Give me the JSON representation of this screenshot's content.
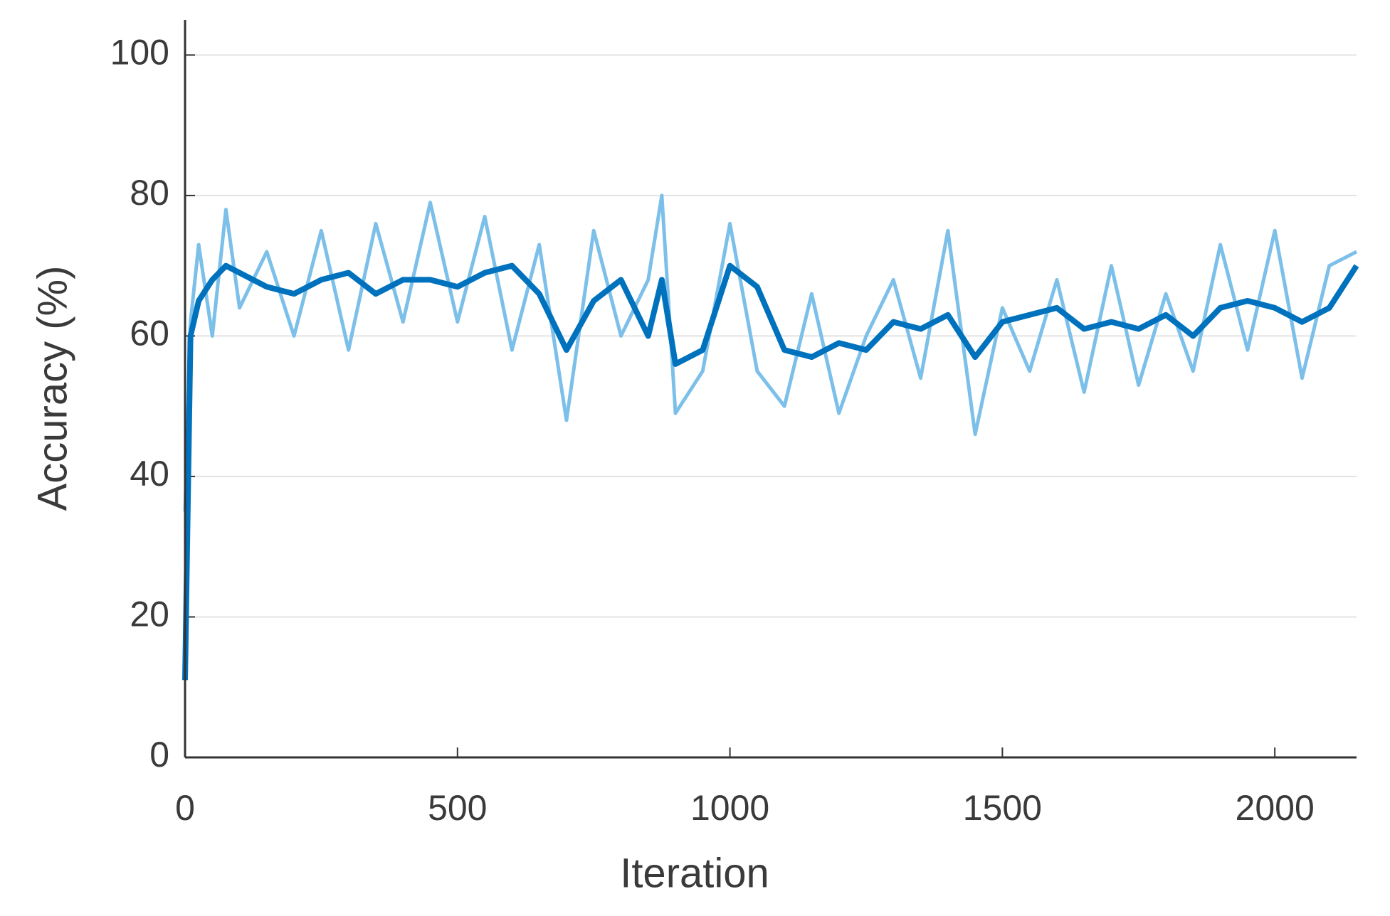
{
  "chart_data": {
    "type": "line",
    "x_label": "Iteration",
    "y_label": "Accuracy (%)",
    "x": [
      0,
      10,
      25,
      50,
      75,
      100,
      150,
      200,
      250,
      300,
      350,
      400,
      450,
      500,
      550,
      600,
      650,
      700,
      750,
      800,
      850,
      875,
      900,
      950,
      1000,
      1050,
      1100,
      1150,
      1200,
      1250,
      1300,
      1350,
      1400,
      1450,
      1500,
      1550,
      1600,
      1650,
      1700,
      1750,
      1800,
      1850,
      1900,
      1950,
      2000,
      2050,
      2100,
      2150
    ],
    "series": [
      {
        "color": "#7cc0ea",
        "values": [
          35,
          62,
          73,
          60,
          78,
          64,
          72,
          60,
          75,
          58,
          76,
          62,
          79,
          62,
          77,
          58,
          73,
          48,
          75,
          60,
          68,
          80,
          49,
          55,
          76,
          55,
          50,
          66,
          49,
          60,
          68,
          54,
          75,
          46,
          64,
          55,
          68,
          52,
          70,
          53,
          66,
          55,
          73,
          58,
          75,
          54,
          70,
          72
        ]
      },
      {
        "color": "#0072bd",
        "values": [
          11,
          60,
          65,
          68,
          70,
          69,
          67,
          66,
          68,
          69,
          66,
          68,
          68,
          67,
          69,
          70,
          66,
          58,
          65,
          68,
          60,
          68,
          56,
          58,
          70,
          67,
          58,
          57,
          59,
          58,
          62,
          61,
          63,
          57,
          62,
          63,
          64,
          61,
          62,
          61,
          63,
          60,
          64,
          65,
          64,
          62,
          64,
          70
        ]
      }
    ],
    "xlim": [
      0,
      2150
    ],
    "ylim": [
      0,
      105
    ],
    "xticks": [
      0,
      500,
      1000,
      1500,
      2000
    ],
    "yticks": [
      0,
      20,
      40,
      60,
      80,
      100
    ],
    "grid": true
  }
}
